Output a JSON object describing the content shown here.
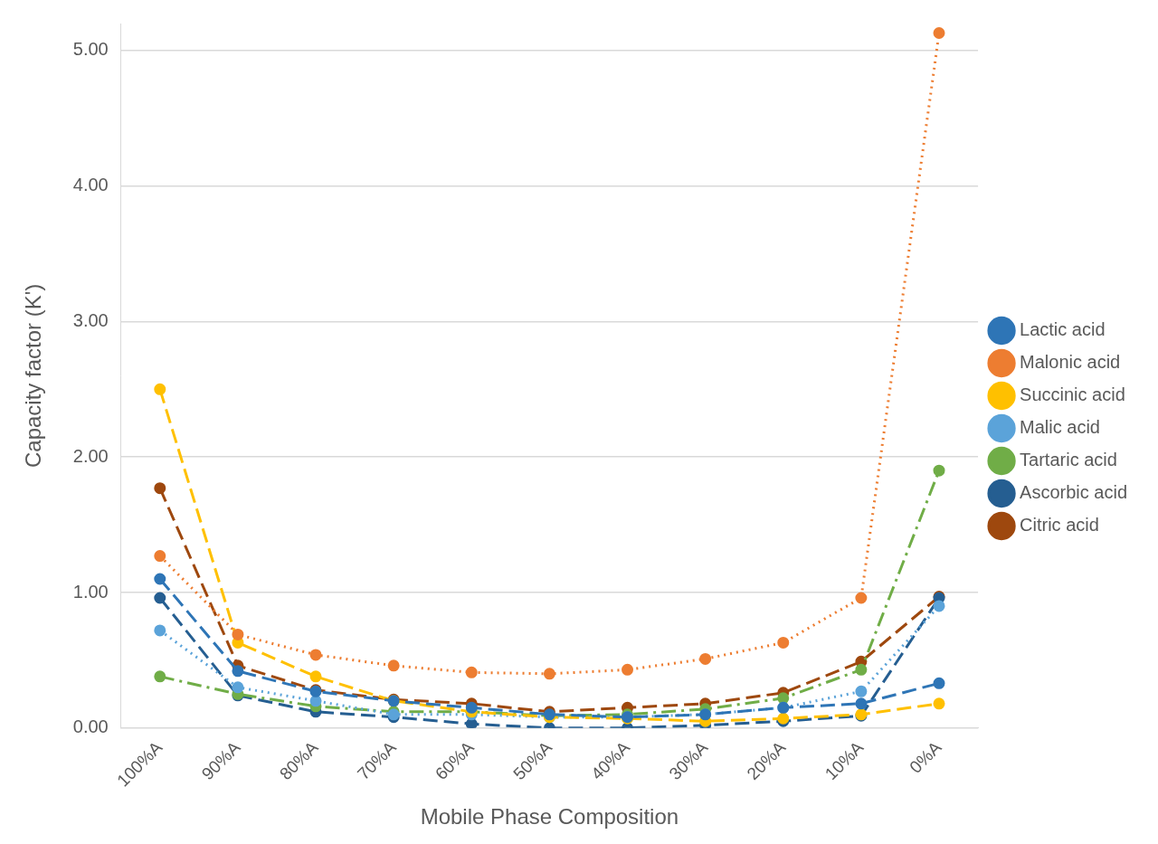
{
  "chart_data": {
    "type": "line",
    "x_label": "Mobile Phase Composition",
    "y_label": "Capacity factor (K')",
    "categories": [
      "100%A",
      "90%A",
      "80%A",
      "70%A",
      "60%A",
      "50%A",
      "40%A",
      "30%A",
      "20%A",
      "10%A",
      "0%A"
    ],
    "series": [
      {
        "name": "Lactic acid",
        "color": "#2e75b6",
        "line_style": "dashed",
        "marker": "circle",
        "values": [
          1.1,
          0.42,
          0.27,
          0.2,
          0.15,
          0.1,
          0.08,
          0.1,
          0.15,
          0.18,
          0.33
        ]
      },
      {
        "name": "Malonic acid",
        "color": "#ed7d31",
        "line_style": "dotted",
        "marker": "circle",
        "values": [
          1.27,
          0.69,
          0.54,
          0.46,
          0.41,
          0.4,
          0.43,
          0.51,
          0.63,
          0.96,
          5.13
        ]
      },
      {
        "name": "Succinic acid",
        "color": "#ffc000",
        "line_style": "dashed",
        "marker": "circle",
        "values": [
          2.5,
          0.63,
          0.38,
          0.2,
          0.12,
          0.08,
          0.07,
          0.05,
          0.07,
          0.1,
          0.18
        ]
      },
      {
        "name": "Malic acid",
        "color": "#5ba3d9",
        "line_style": "dotted",
        "marker": "circle",
        "values": [
          0.72,
          0.3,
          0.2,
          0.1,
          0.1,
          0.08,
          0.08,
          0.1,
          0.15,
          0.27,
          0.9
        ]
      },
      {
        "name": "Tartaric acid",
        "color": "#70ad47",
        "line_style": "dashdot",
        "marker": "circle",
        "values": [
          0.38,
          0.25,
          0.16,
          0.12,
          0.12,
          0.09,
          0.1,
          0.14,
          0.22,
          0.43,
          1.9
        ]
      },
      {
        "name": "Ascorbic acid",
        "color": "#255e91",
        "line_style": "dashed",
        "marker": "circle",
        "values": [
          0.96,
          0.24,
          0.12,
          0.08,
          0.03,
          0.0,
          0.0,
          0.02,
          0.05,
          0.09,
          0.96
        ]
      },
      {
        "name": "Citric acid",
        "color": "#9e480e",
        "line_style": "dashed",
        "marker": "circle",
        "values": [
          1.77,
          0.46,
          0.28,
          0.21,
          0.18,
          0.12,
          0.15,
          0.18,
          0.26,
          0.49,
          0.97
        ]
      }
    ],
    "ylim": [
      0,
      5.2
    ],
    "yticks": [
      {
        "value": 0,
        "label": "0.00"
      },
      {
        "value": 1,
        "label": "1.00"
      },
      {
        "value": 2,
        "label": "2.00"
      },
      {
        "value": 3,
        "label": "3.00"
      },
      {
        "value": 4,
        "label": "4.00"
      },
      {
        "value": 5,
        "label": "5.00"
      }
    ],
    "grid": true,
    "legend": "right"
  }
}
